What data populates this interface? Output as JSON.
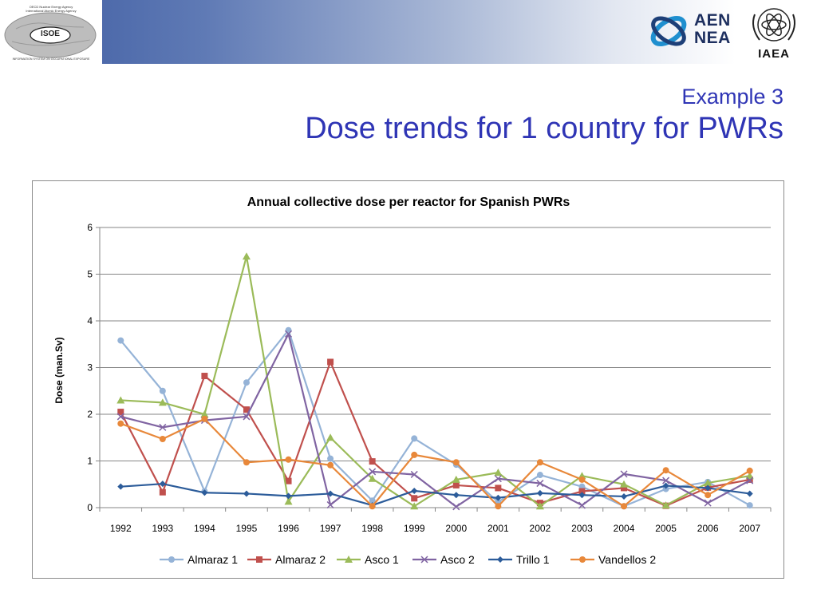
{
  "header": {
    "isoe": {
      "tag_line1": "OECD Nuclear Energy Agency",
      "tag_line2": "International Atomic Energy Agency",
      "name": "ISOE",
      "footer": "INFORMATION SYSTEM ON OCCUPATIONAL EXPOSURE"
    },
    "aen_nea": {
      "line1": "AEN",
      "line2": "NEA"
    },
    "iaea": {
      "name": "IAEA"
    }
  },
  "slide": {
    "title_line1": "Example 3",
    "title_line2": "Dose trends for 1 country for PWRs"
  },
  "colors": {
    "title": "#2f35b5",
    "banner_start": "#3c5aa0"
  },
  "chart_data": {
    "type": "line",
    "title": "Annual collective dose per reactor for Spanish PWRs",
    "xlabel": "",
    "ylabel": "Dose (man.Sv)",
    "ylim": [
      0,
      6
    ],
    "yticks": [
      "0",
      "1",
      "2",
      "3",
      "4",
      "5",
      "6"
    ],
    "grid": true,
    "legend_position": "bottom",
    "categories": [
      "1992",
      "1993",
      "1994",
      "1995",
      "1996",
      "1997",
      "1998",
      "1999",
      "2000",
      "2001",
      "2002",
      "2003",
      "2004",
      "2005",
      "2006",
      "2007"
    ],
    "series": [
      {
        "name": "Almaraz 1",
        "color": "#95b3d7",
        "marker": "circle",
        "values": [
          3.58,
          2.5,
          0.35,
          2.68,
          3.8,
          1.05,
          0.15,
          1.48,
          0.92,
          0.12,
          0.7,
          0.45,
          0.03,
          0.4,
          0.55,
          0.05
        ]
      },
      {
        "name": "Almaraz 2",
        "color": "#c0504d",
        "marker": "square",
        "values": [
          2.05,
          0.33,
          2.82,
          2.1,
          0.57,
          3.12,
          0.99,
          0.2,
          0.48,
          0.42,
          0.1,
          0.35,
          0.42,
          0.04,
          0.43,
          0.6
        ]
      },
      {
        "name": "Asco 1",
        "color": "#9bbb59",
        "marker": "triangle",
        "values": [
          2.3,
          2.25,
          2.0,
          5.38,
          0.13,
          1.5,
          0.62,
          0.03,
          0.6,
          0.75,
          0.03,
          0.68,
          0.5,
          0.05,
          0.53,
          0.68
        ]
      },
      {
        "name": "Asco 2",
        "color": "#8064a2",
        "marker": "x",
        "values": [
          1.95,
          1.72,
          1.87,
          1.95,
          3.72,
          0.06,
          0.77,
          0.71,
          0.02,
          0.62,
          0.52,
          0.05,
          0.72,
          0.58,
          0.1,
          0.58
        ]
      },
      {
        "name": "Trillo 1",
        "color": "#2c5c9a",
        "marker": "diamond",
        "values": [
          0.45,
          0.51,
          0.32,
          0.3,
          0.25,
          0.3,
          0.05,
          0.36,
          0.27,
          0.21,
          0.31,
          0.27,
          0.24,
          0.47,
          0.42,
          0.3
        ]
      },
      {
        "name": "Vandellos 2",
        "color": "#e8883a",
        "marker": "circle",
        "values": [
          1.8,
          1.47,
          1.9,
          0.97,
          1.03,
          0.91,
          0.03,
          1.13,
          0.97,
          0.03,
          0.97,
          0.6,
          0.03,
          0.8,
          0.27,
          0.79
        ]
      }
    ]
  }
}
